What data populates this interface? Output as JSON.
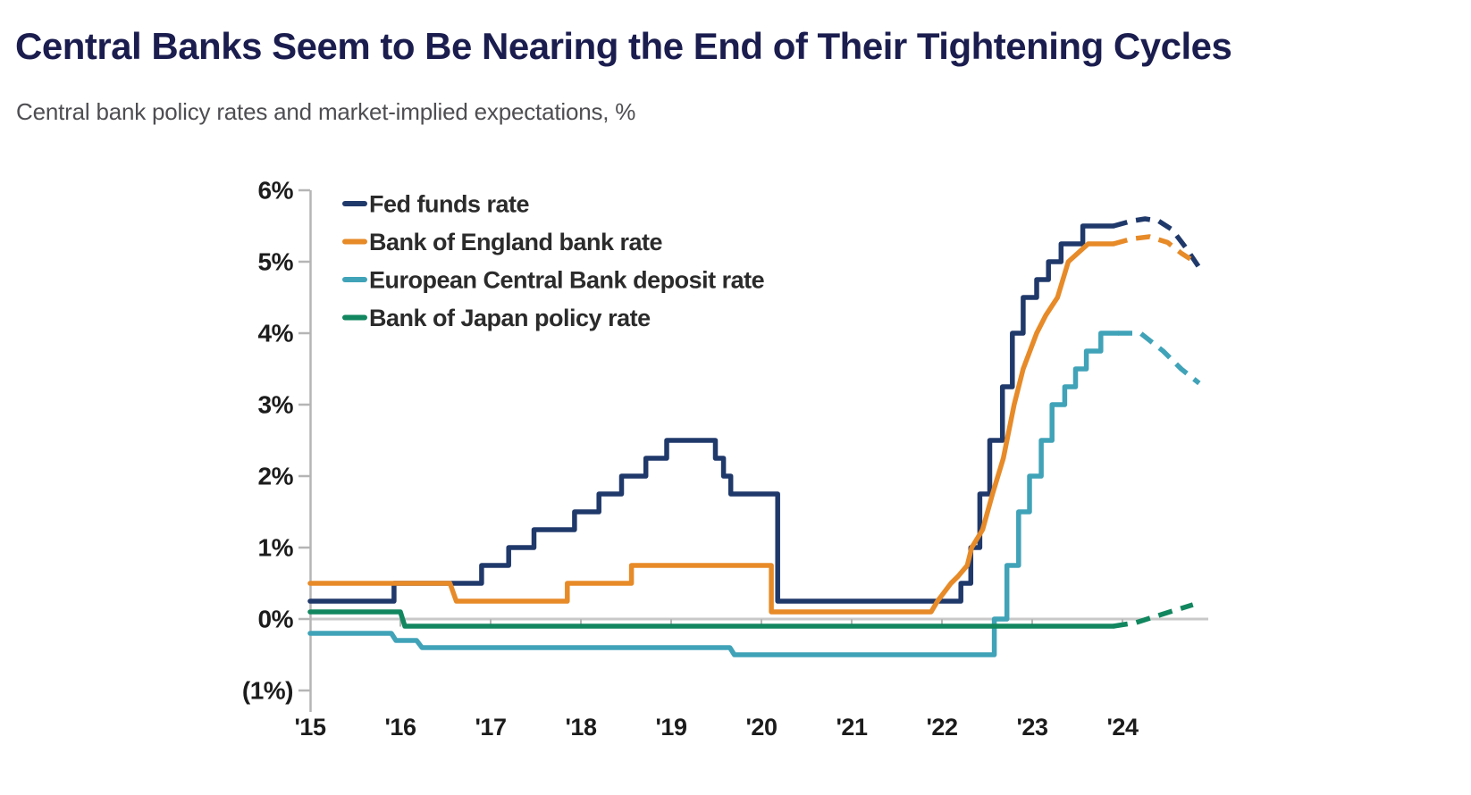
{
  "header": {
    "title": "Central Banks Seem to Be Nearing the End of Their Tightening Cycles",
    "subtitle": "Central bank policy rates and market-implied expectations, %"
  },
  "chart_data": {
    "type": "line",
    "title": "Central Banks Seem to Be Nearing the End of Their Tightening Cycles",
    "subtitle": "Central bank policy rates and market-implied expectations, %",
    "unit": "%",
    "dashed_segments_represent": "market-implied expectations",
    "legend_position": "top-left-inside",
    "x_axis": {
      "tick_years": [
        2015,
        2016,
        2017,
        2018,
        2019,
        2020,
        2021,
        2022,
        2023,
        2024
      ],
      "tick_labels": [
        "'15",
        "'16",
        "'17",
        "'18",
        "'19",
        "'20",
        "'21",
        "'22",
        "'23",
        "'24"
      ],
      "range": [
        2015.0,
        2025.0
      ]
    },
    "y_axis": {
      "tick_values": [
        6,
        5,
        4,
        3,
        2,
        1,
        0,
        -1
      ],
      "tick_labels": [
        "6%",
        "5%",
        "4%",
        "3%",
        "2%",
        "1%",
        "0%",
        "(1%)"
      ],
      "range": [
        -1,
        6
      ],
      "zero_line": true
    },
    "series": [
      {
        "name": "Fed funds rate",
        "color": "#20396b",
        "solid": [
          [
            2015.0,
            0.25
          ],
          [
            2015.93,
            0.25
          ],
          [
            2015.93,
            0.5
          ],
          [
            2016.9,
            0.5
          ],
          [
            2016.9,
            0.75
          ],
          [
            2017.2,
            0.75
          ],
          [
            2017.2,
            1.0
          ],
          [
            2017.48,
            1.0
          ],
          [
            2017.48,
            1.25
          ],
          [
            2017.93,
            1.25
          ],
          [
            2017.93,
            1.5
          ],
          [
            2018.2,
            1.5
          ],
          [
            2018.2,
            1.75
          ],
          [
            2018.45,
            1.75
          ],
          [
            2018.45,
            2.0
          ],
          [
            2018.72,
            2.0
          ],
          [
            2018.72,
            2.25
          ],
          [
            2018.95,
            2.25
          ],
          [
            2018.95,
            2.5
          ],
          [
            2019.49,
            2.5
          ],
          [
            2019.49,
            2.25
          ],
          [
            2019.58,
            2.25
          ],
          [
            2019.58,
            2.0
          ],
          [
            2019.66,
            2.0
          ],
          [
            2019.66,
            1.75
          ],
          [
            2020.18,
            1.75
          ],
          [
            2020.18,
            0.25
          ],
          [
            2022.21,
            0.25
          ],
          [
            2022.21,
            0.5
          ],
          [
            2022.32,
            0.5
          ],
          [
            2022.32,
            1.0
          ],
          [
            2022.42,
            1.0
          ],
          [
            2022.42,
            1.75
          ],
          [
            2022.53,
            1.75
          ],
          [
            2022.53,
            2.5
          ],
          [
            2022.67,
            2.5
          ],
          [
            2022.67,
            3.25
          ],
          [
            2022.78,
            3.25
          ],
          [
            2022.78,
            4.0
          ],
          [
            2022.9,
            4.0
          ],
          [
            2022.9,
            4.5
          ],
          [
            2023.05,
            4.5
          ],
          [
            2023.05,
            4.75
          ],
          [
            2023.18,
            4.75
          ],
          [
            2023.18,
            5.0
          ],
          [
            2023.32,
            5.0
          ],
          [
            2023.32,
            5.25
          ],
          [
            2023.56,
            5.25
          ],
          [
            2023.56,
            5.5
          ],
          [
            2023.9,
            5.5
          ]
        ],
        "dashed": [
          [
            2023.9,
            5.5
          ],
          [
            2024.1,
            5.57
          ],
          [
            2024.25,
            5.6
          ],
          [
            2024.4,
            5.57
          ],
          [
            2024.55,
            5.45
          ],
          [
            2024.7,
            5.2
          ],
          [
            2024.86,
            4.9
          ]
        ]
      },
      {
        "name": "Bank of England bank rate",
        "color": "#e78a28",
        "solid": [
          [
            2015.0,
            0.5
          ],
          [
            2016.55,
            0.5
          ],
          [
            2016.62,
            0.25
          ],
          [
            2017.85,
            0.25
          ],
          [
            2017.85,
            0.5
          ],
          [
            2018.56,
            0.5
          ],
          [
            2018.56,
            0.75
          ],
          [
            2020.11,
            0.75
          ],
          [
            2020.11,
            0.1
          ],
          [
            2021.88,
            0.1
          ],
          [
            2021.95,
            0.25
          ],
          [
            2022.1,
            0.5
          ],
          [
            2022.18,
            0.6
          ],
          [
            2022.28,
            0.75
          ],
          [
            2022.33,
            1.0
          ],
          [
            2022.45,
            1.25
          ],
          [
            2022.56,
            1.75
          ],
          [
            2022.68,
            2.25
          ],
          [
            2022.8,
            3.0
          ],
          [
            2022.9,
            3.5
          ],
          [
            2023.05,
            4.0
          ],
          [
            2023.15,
            4.25
          ],
          [
            2023.28,
            4.5
          ],
          [
            2023.4,
            5.0
          ],
          [
            2023.62,
            5.25
          ],
          [
            2023.9,
            5.25
          ]
        ],
        "dashed": [
          [
            2023.9,
            5.25
          ],
          [
            2024.1,
            5.32
          ],
          [
            2024.3,
            5.35
          ],
          [
            2024.5,
            5.27
          ],
          [
            2024.65,
            5.12
          ],
          [
            2024.8,
            5.0
          ]
        ]
      },
      {
        "name": "European Central Bank deposit rate",
        "color": "#40a3b8",
        "solid": [
          [
            2015.0,
            -0.2
          ],
          [
            2015.9,
            -0.2
          ],
          [
            2015.95,
            -0.3
          ],
          [
            2016.18,
            -0.3
          ],
          [
            2016.24,
            -0.4
          ],
          [
            2019.65,
            -0.4
          ],
          [
            2019.7,
            -0.5
          ],
          [
            2022.58,
            -0.5
          ],
          [
            2022.58,
            0.0
          ],
          [
            2022.72,
            0.0
          ],
          [
            2022.72,
            0.75
          ],
          [
            2022.85,
            0.75
          ],
          [
            2022.85,
            1.5
          ],
          [
            2022.97,
            1.5
          ],
          [
            2022.97,
            2.0
          ],
          [
            2023.1,
            2.0
          ],
          [
            2023.1,
            2.5
          ],
          [
            2023.22,
            2.5
          ],
          [
            2023.22,
            3.0
          ],
          [
            2023.36,
            3.0
          ],
          [
            2023.36,
            3.25
          ],
          [
            2023.48,
            3.25
          ],
          [
            2023.48,
            3.5
          ],
          [
            2023.6,
            3.5
          ],
          [
            2023.6,
            3.75
          ],
          [
            2023.76,
            3.75
          ],
          [
            2023.76,
            4.0
          ],
          [
            2023.95,
            4.0
          ]
        ],
        "dashed": [
          [
            2023.95,
            4.0
          ],
          [
            2024.2,
            4.0
          ],
          [
            2024.45,
            3.75
          ],
          [
            2024.65,
            3.5
          ],
          [
            2024.85,
            3.3
          ]
        ]
      },
      {
        "name": "Bank of Japan policy rate",
        "color": "#12875f",
        "solid": [
          [
            2015.0,
            0.1
          ],
          [
            2016.0,
            0.1
          ],
          [
            2016.05,
            -0.1
          ],
          [
            2023.9,
            -0.1
          ]
        ],
        "dashed": [
          [
            2023.9,
            -0.1
          ],
          [
            2024.15,
            -0.05
          ],
          [
            2024.4,
            0.05
          ],
          [
            2024.6,
            0.13
          ],
          [
            2024.78,
            0.2
          ]
        ]
      }
    ],
    "style": {
      "title_color": "#1b1d4f",
      "subtitle_color": "#4e4e52",
      "axis_text_color": "#1c1c1c",
      "legend_text_color": "#2b2b2b",
      "axis_line_color": "#b5b5b5",
      "zero_line_color": "#c9c9c9"
    }
  }
}
